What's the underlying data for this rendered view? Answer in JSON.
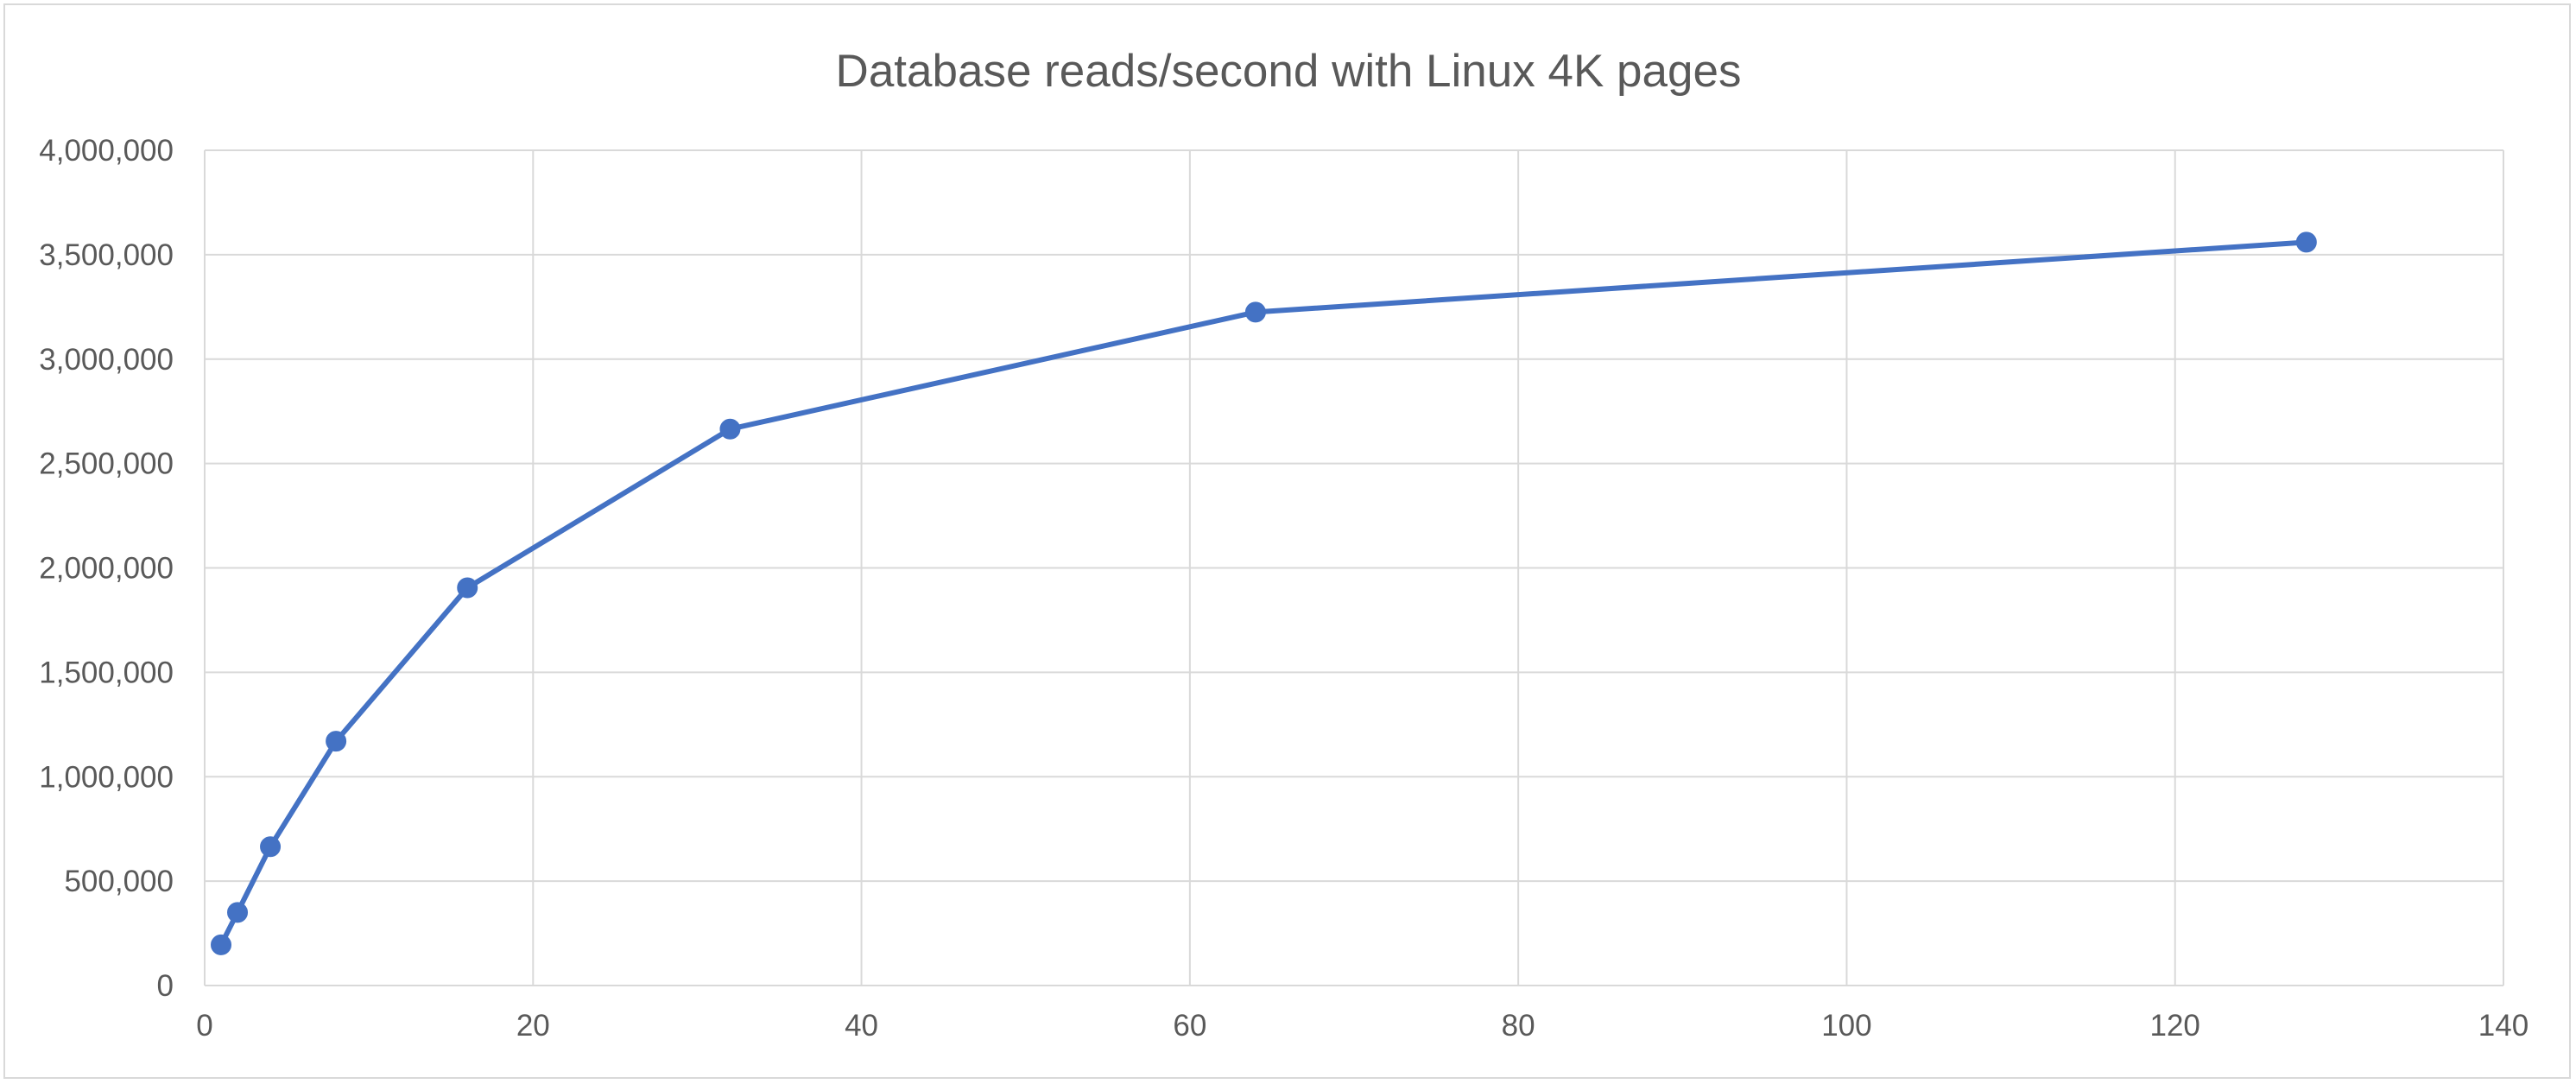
{
  "chart_data": {
    "type": "scatter",
    "title": "Database reads/second with Linux 4K pages",
    "xlabel": "",
    "ylabel": "",
    "xlim": [
      0,
      140
    ],
    "ylim": [
      0,
      4000000
    ],
    "x_ticks": [
      0,
      20,
      40,
      60,
      80,
      100,
      120,
      140
    ],
    "x_tick_labels": [
      "0",
      "20",
      "40",
      "60",
      "80",
      "100",
      "120",
      "140"
    ],
    "y_ticks": [
      0,
      500000,
      1000000,
      1500000,
      2000000,
      2500000,
      3000000,
      3500000,
      4000000
    ],
    "y_tick_labels": [
      "0",
      "500,000",
      "1,000,000",
      "1,500,000",
      "2,000,000",
      "2,500,000",
      "3,000,000",
      "3,500,000",
      "4,000,000"
    ],
    "grid": true,
    "legend": "none",
    "series": [
      {
        "color": "#4472c4",
        "style": "line-with-markers",
        "x": [
          1,
          2,
          4,
          8,
          16,
          32,
          64,
          128
        ],
        "y": [
          195000,
          350000,
          665000,
          1170000,
          1905000,
          2665000,
          3225000,
          3560000
        ]
      }
    ]
  }
}
